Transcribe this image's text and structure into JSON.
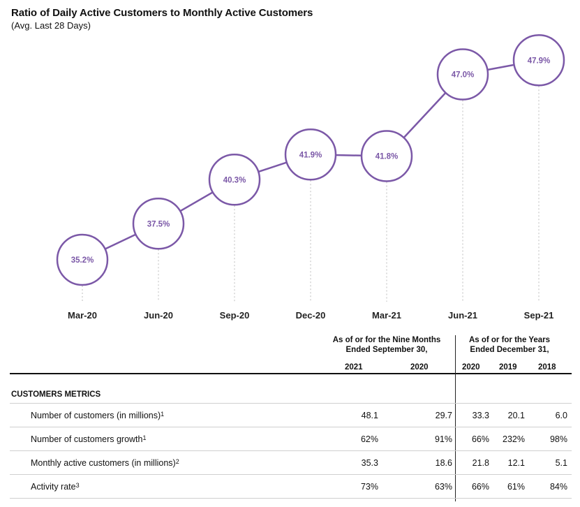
{
  "title": "Ratio of Daily Active Customers to Monthly Active Customers",
  "subtitle": "(Avg. Last 28 Days)",
  "chart_data": {
    "type": "line",
    "title": "Ratio of Daily Active Customers to Monthly Active Customers",
    "subtitle": "(Avg. Last 28 Days)",
    "categories": [
      "Mar-20",
      "Jun-20",
      "Sep-20",
      "Dec-20",
      "Mar-21",
      "Jun-21",
      "Sep-21"
    ],
    "values": [
      35.2,
      37.5,
      40.3,
      41.9,
      41.8,
      47.0,
      47.9
    ],
    "labels": [
      "35.2%",
      "37.5%",
      "40.3%",
      "41.9%",
      "41.8%",
      "47.0%",
      "47.9%"
    ],
    "ylabel": "",
    "xlabel": "",
    "grid": false,
    "color": "#7b58a7"
  },
  "table": {
    "header_nine_months": "As of or for the Nine Months\nEnded September 30,",
    "header_years": "As of or for the Years\nEnded December 31,",
    "years": [
      "2021",
      "2020",
      "2020",
      "2019",
      "2018"
    ],
    "section": "CUSTOMERS METRICS",
    "rows": [
      {
        "label": "Number of customers (in millions)",
        "note": "1",
        "values": [
          "48.1",
          "29.7",
          "33.3",
          "20.1",
          "6.0"
        ]
      },
      {
        "label": "Number of customers growth",
        "note": "1",
        "values": [
          "62%",
          "91%",
          "66%",
          "232%",
          "98%"
        ]
      },
      {
        "label": "Monthly active customers (in millions)",
        "note": "2",
        "values": [
          "35.3",
          "18.6",
          "21.8",
          "12.1",
          "5.1"
        ]
      },
      {
        "label": "Activity rate",
        "note": "3",
        "values": [
          "73%",
          "63%",
          "66%",
          "61%",
          "84%"
        ]
      }
    ]
  }
}
